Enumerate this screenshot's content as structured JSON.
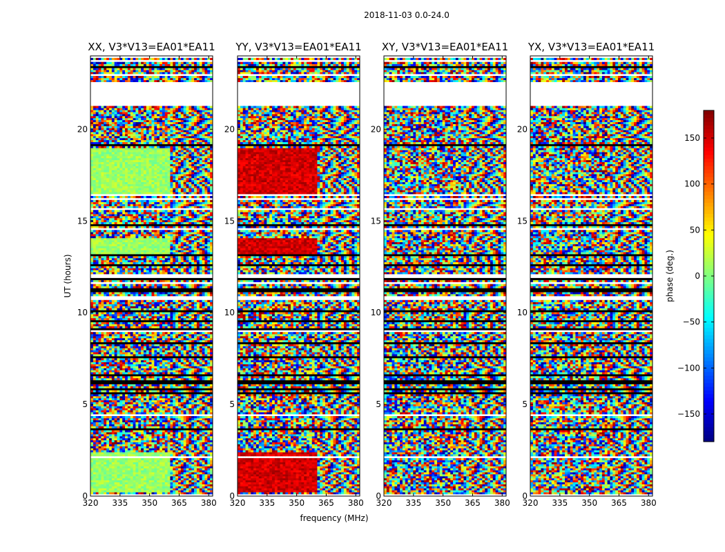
{
  "chart_data": {
    "type": "heatmap",
    "suptitle": "2018-11-03 0.0-24.0",
    "xlabel": "frequency (MHz)",
    "ylabel": "UT (hours)",
    "xlim": [
      320,
      382
    ],
    "ylim": [
      0,
      24
    ],
    "xticks": [
      320,
      335,
      350,
      365,
      380
    ],
    "yticks": [
      0,
      5,
      10,
      15,
      20
    ],
    "panels": [
      {
        "title": "XX, V3*V13=EA01*EA11",
        "mode": "xx"
      },
      {
        "title": "YY, V3*V13=EA01*EA11",
        "mode": "yy"
      },
      {
        "title": "XY, V3*V13=EA01*EA11",
        "mode": "xy"
      },
      {
        "title": "YX, V3*V13=EA01*EA11",
        "mode": "yx"
      }
    ],
    "colorbar": {
      "label": "phase (deg.)",
      "range": [
        -180,
        180
      ],
      "ticks": [
        150,
        100,
        50,
        0,
        -50,
        -100,
        -150
      ],
      "tick_labels": [
        "150",
        "100",
        "50",
        "0",
        "−50",
        "−100",
        "−150"
      ],
      "colormap": "jet"
    },
    "blank_time_gaps_hours": [
      [
        23.9,
        24.0
      ],
      [
        21.4,
        22.6
      ],
      [
        16.2,
        16.3
      ],
      [
        11.6,
        11.7
      ],
      [
        8.9,
        9.0
      ],
      [
        2.1,
        2.2
      ]
    ],
    "coherent_band_hours": [
      [
        16.5,
        19.0
      ],
      [
        13.2,
        14.1
      ],
      [
        0.2,
        2.4
      ]
    ],
    "rfi_channel_boundary_mhz": 360
  }
}
